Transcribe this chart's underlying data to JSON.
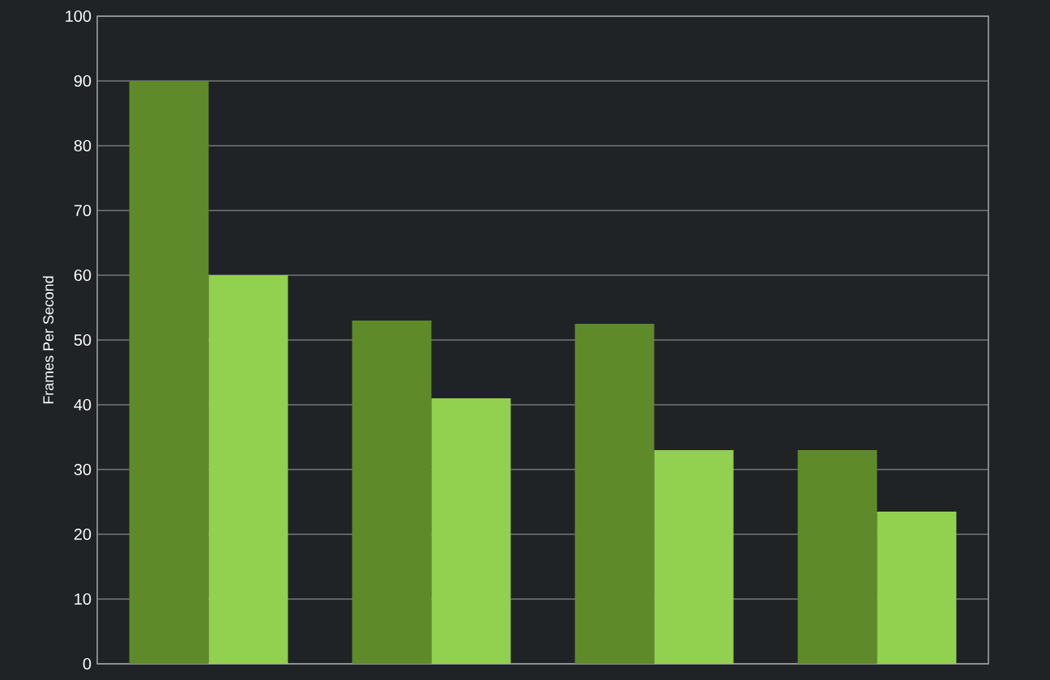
{
  "chart_data": {
    "type": "bar",
    "ylabel": "Frames Per Second",
    "categories": [
      null,
      null,
      null,
      null
    ],
    "series": [
      {
        "color": "#5f8a2a",
        "values": [
          90,
          53,
          52.5,
          33
        ]
      },
      {
        "color": "#92d050",
        "values": [
          60,
          41,
          33,
          23.5
        ]
      }
    ],
    "ylim": [
      0,
      100
    ],
    "yticks": [
      0,
      10,
      20,
      30,
      40,
      50,
      60,
      70,
      80,
      90,
      100
    ],
    "grid": "y"
  }
}
